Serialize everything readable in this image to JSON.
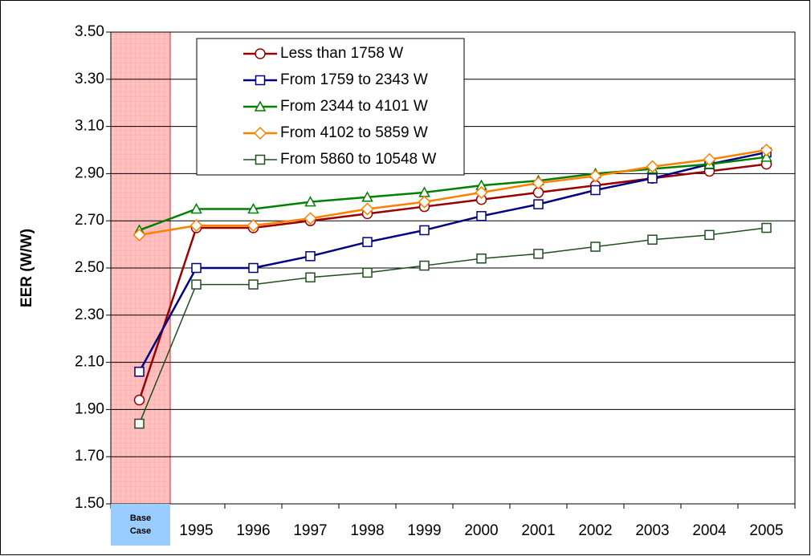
{
  "chart_data": {
    "type": "line",
    "y_label": "EER (W/W)",
    "categories": [
      "Base Case",
      "1995",
      "1996",
      "1997",
      "1998",
      "1999",
      "2000",
      "2001",
      "2002",
      "2003",
      "2004",
      "2005"
    ],
    "ylim": [
      1.5,
      3.5
    ],
    "yticks": [
      {
        "value": 1.5,
        "label": "1.50"
      },
      {
        "value": 1.7,
        "label": "1.70"
      },
      {
        "value": 1.9,
        "label": "1.90"
      },
      {
        "value": 2.1,
        "label": "2.10"
      },
      {
        "value": 2.3,
        "label": "2.30"
      },
      {
        "value": 2.5,
        "label": "2.50"
      },
      {
        "value": 2.7,
        "label": "2.70"
      },
      {
        "value": 2.9,
        "label": "2.90"
      },
      {
        "value": 3.1,
        "label": "3.10"
      },
      {
        "value": 3.3,
        "label": "3.30"
      },
      {
        "value": 3.5,
        "label": "3.50"
      }
    ],
    "grid": true,
    "series": [
      {
        "name": "Less than 1758 W",
        "color": "#990000",
        "marker": "circle",
        "values": [
          1.94,
          2.67,
          2.67,
          2.7,
          2.73,
          2.76,
          2.79,
          2.82,
          2.85,
          2.88,
          2.91,
          2.94
        ]
      },
      {
        "name": "From 1759 to 2343 W",
        "color": "#000080",
        "marker": "square",
        "values": [
          2.06,
          2.5,
          2.5,
          2.55,
          2.61,
          2.66,
          2.72,
          2.77,
          2.83,
          2.88,
          2.94,
          2.99
        ]
      },
      {
        "name": "From 2344 to 4101 W",
        "color": "#008000",
        "marker": "triangle",
        "values": [
          2.66,
          2.75,
          2.75,
          2.78,
          2.8,
          2.82,
          2.85,
          2.87,
          2.9,
          2.92,
          2.94,
          2.97
        ]
      },
      {
        "name": "From 4102 to 5859 W",
        "color": "#ff8000",
        "marker": "diamond",
        "values": [
          2.64,
          2.68,
          2.68,
          2.71,
          2.75,
          2.78,
          2.82,
          2.86,
          2.89,
          2.93,
          2.96,
          3.0
        ]
      },
      {
        "name": "From 5860 to 10548 W",
        "color": "#1e4d1e",
        "marker": "square",
        "values": [
          1.84,
          2.43,
          2.43,
          2.46,
          2.48,
          2.51,
          2.54,
          2.56,
          2.59,
          2.62,
          2.64,
          2.67
        ]
      }
    ]
  }
}
